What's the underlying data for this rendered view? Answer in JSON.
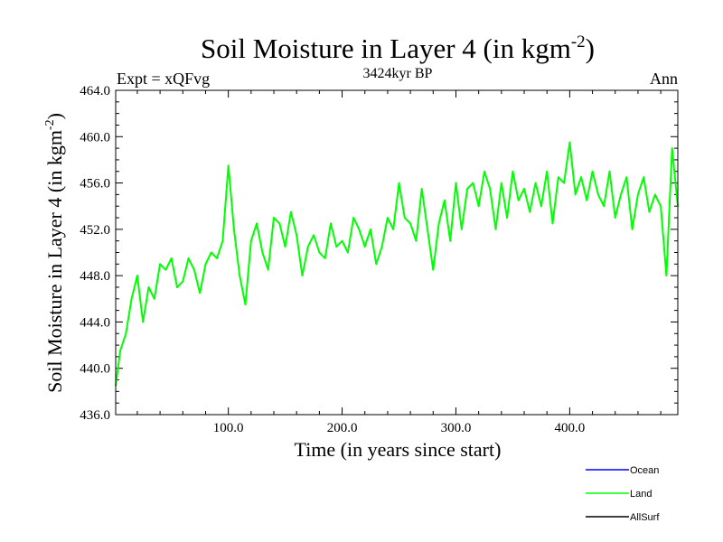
{
  "chart_data": {
    "type": "line",
    "title": "Soil Moisture in Layer 4 (in kgm",
    "title_sup": "-2",
    "title_close": ")",
    "subtitle_left": "Expt = xQFvg",
    "subtitle_center": "3424kyr BP",
    "subtitle_right": "Ann",
    "xlabel": "Time (in years since start)",
    "ylabel": "Soil Moisture in Layer 4 (in kgm",
    "ylabel_sup": "-2",
    "ylabel_close": ")",
    "xlim": [
      1,
      495
    ],
    "ylim": [
      436.0,
      464.0
    ],
    "xticks": [
      100,
      200,
      300,
      400
    ],
    "xtick_labels": [
      "100.0",
      "200.0",
      "300.0",
      "400.0"
    ],
    "yticks": [
      436,
      440,
      444,
      448,
      452,
      456,
      460,
      464
    ],
    "ytick_labels": [
      "436.0",
      "440.0",
      "444.0",
      "448.0",
      "452.0",
      "456.0",
      "460.0",
      "464.0"
    ],
    "legend": [
      {
        "name": "Ocean",
        "color": "#0000ff"
      },
      {
        "name": "Land",
        "color": "#00ff00"
      },
      {
        "name": "AllSurf",
        "color": "#000000"
      }
    ],
    "series": [
      {
        "name": "Land",
        "color": "#00ff00",
        "x": [
          1,
          5,
          10,
          15,
          20,
          25,
          30,
          35,
          40,
          45,
          50,
          55,
          60,
          65,
          70,
          75,
          80,
          85,
          90,
          95,
          100,
          105,
          110,
          115,
          120,
          125,
          130,
          135,
          140,
          145,
          150,
          155,
          160,
          165,
          170,
          175,
          180,
          185,
          190,
          195,
          200,
          205,
          210,
          215,
          220,
          225,
          230,
          235,
          240,
          245,
          250,
          255,
          260,
          265,
          270,
          275,
          280,
          285,
          290,
          295,
          300,
          305,
          310,
          315,
          320,
          325,
          330,
          335,
          340,
          345,
          350,
          355,
          360,
          365,
          370,
          375,
          380,
          385,
          390,
          395,
          400,
          405,
          410,
          415,
          420,
          425,
          430,
          435,
          440,
          445,
          450,
          455,
          460,
          465,
          470,
          475,
          480,
          485,
          490,
          495
        ],
        "values": [
          438.5,
          441.5,
          443.0,
          446.0,
          448.0,
          444.0,
          447.0,
          446.0,
          449.0,
          448.5,
          449.5,
          447.0,
          447.5,
          449.5,
          448.5,
          446.5,
          449.0,
          450.0,
          449.5,
          451.0,
          457.5,
          452.0,
          448.0,
          445.5,
          451.0,
          452.5,
          450.0,
          448.5,
          453.0,
          452.5,
          450.5,
          453.5,
          451.5,
          448.0,
          450.5,
          451.5,
          450.0,
          449.5,
          452.5,
          450.5,
          451.0,
          450.0,
          453.0,
          452.0,
          450.5,
          452.0,
          449.0,
          450.5,
          453.0,
          452.0,
          456.0,
          453.0,
          452.5,
          451.0,
          455.5,
          452.0,
          448.5,
          452.5,
          454.5,
          451.0,
          456.0,
          452.0,
          455.5,
          456.0,
          454.0,
          457.0,
          455.5,
          452.0,
          456.0,
          453.0,
          457.0,
          454.5,
          455.5,
          453.5,
          456.0,
          454.0,
          457.0,
          452.5,
          456.5,
          456.0,
          459.5,
          455.0,
          456.5,
          454.5,
          457.0,
          455.0,
          454.0,
          457.0,
          453.0,
          455.0,
          456.5,
          452.0,
          455.0,
          456.5,
          453.5,
          455.0,
          454.0,
          448.0,
          459.0,
          454.0
        ]
      }
    ]
  }
}
